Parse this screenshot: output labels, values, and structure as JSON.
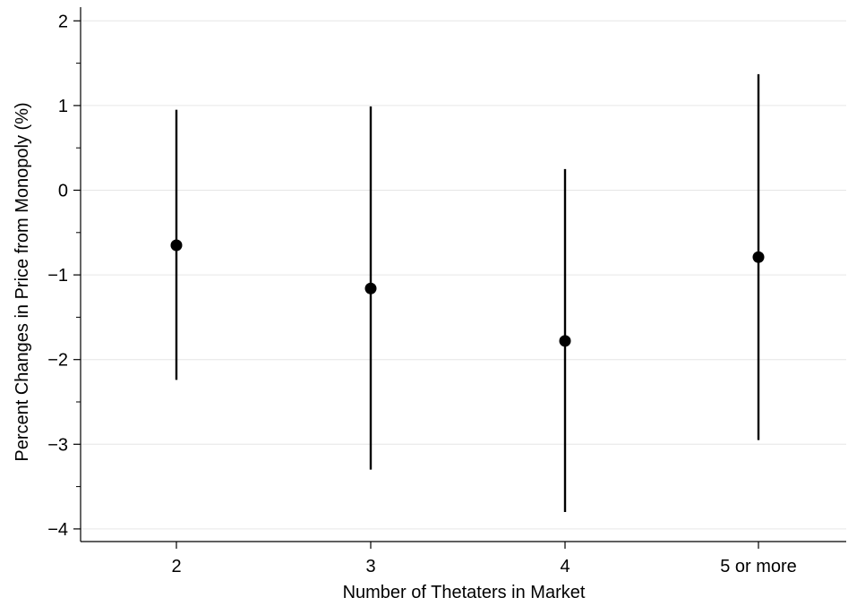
{
  "chart_data": {
    "type": "scatter",
    "title": "",
    "xlabel": "Number of Thetaters in Market",
    "ylabel": "Percent Changes in Price from Monopoly (%)",
    "categories": [
      "2",
      "3",
      "4",
      "5 or more"
    ],
    "series": [
      {
        "values": [
          -0.65,
          -1.16,
          -1.78,
          -0.79
        ],
        "ci_low": [
          -2.24,
          -3.3,
          -3.8,
          -2.95
        ],
        "ci_high": [
          0.95,
          0.99,
          0.25,
          1.37
        ]
      }
    ],
    "ylim": [
      -4.15,
      2.1
    ],
    "yticks": [
      2,
      1,
      0,
      -1,
      -2,
      -3,
      -4
    ],
    "ytick_labels": [
      "2",
      "1",
      "0",
      "−1",
      "−2",
      "−3",
      "−4"
    ],
    "grid": true,
    "legend": "none",
    "colors": {
      "marker": "#000000",
      "error_bar": "#000000",
      "grid": "#e6e6e6",
      "axis": "#000000"
    }
  }
}
